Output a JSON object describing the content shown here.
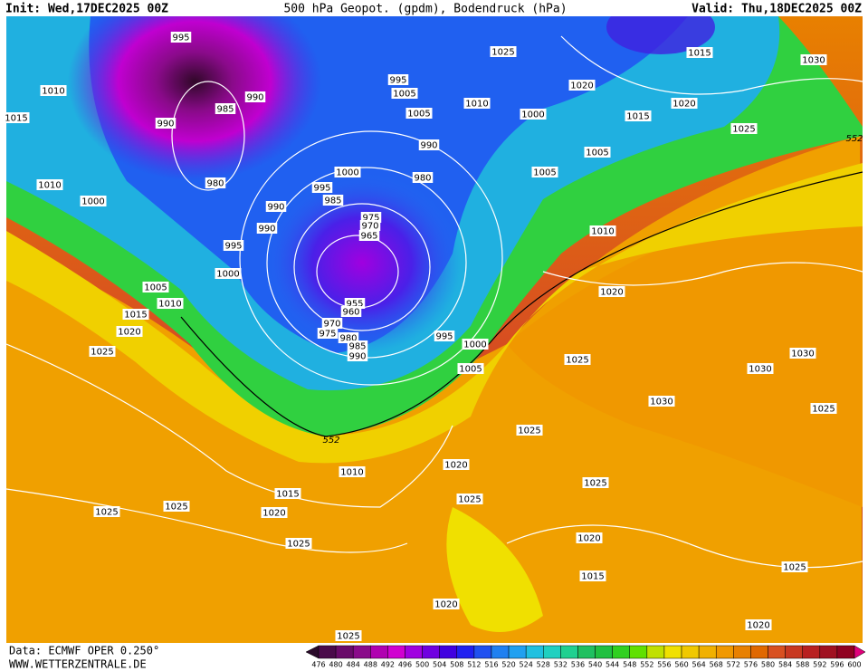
{
  "header": {
    "init": "Init: Wed,17DEC2025 00Z",
    "title": "500 hPa Geopot. (gpdm), Bodendruck (hPa)",
    "valid": "Valid: Thu,18DEC2025 00Z"
  },
  "footer": {
    "source": "Data: ECMWF OPER 0.250°",
    "website": "WWW.WETTERZENTRALE.DE"
  },
  "isobar_labels": [
    995,
    990,
    985,
    990,
    980,
    1010,
    1015,
    1010,
    1000,
    995,
    990,
    990,
    1000,
    1005,
    1010,
    1015,
    1020,
    1025,
    995,
    1005,
    1005,
    1010,
    1025,
    1020,
    1000,
    1015,
    1020,
    1015,
    1030,
    1025,
    990,
    1000,
    995,
    985,
    980,
    975,
    970,
    965,
    955,
    960,
    970,
    975,
    980,
    985,
    990,
    995,
    1000,
    1005,
    1005,
    1005,
    1010,
    1020,
    1025,
    1030,
    1030,
    1030,
    1025,
    1025,
    1020,
    1025,
    1025,
    1010,
    1015,
    1020,
    1025,
    1025,
    1025,
    1020,
    1015,
    1020,
    1025,
    1020,
    1025
  ],
  "contour_labels": [
    552,
    552
  ],
  "colorbar": {
    "labels": [
      476,
      480,
      484,
      488,
      492,
      496,
      500,
      504,
      508,
      512,
      516,
      520,
      524,
      528,
      532,
      536,
      540,
      544,
      548,
      552,
      556,
      560,
      564,
      568,
      572,
      576,
      580,
      584,
      588,
      592,
      596,
      600
    ],
    "colors": [
      "#2a0a2a",
      "#4a0a4a",
      "#6a0a6a",
      "#8a0a8a",
      "#b000b0",
      "#d000d0",
      "#a000e0",
      "#7000e0",
      "#4000e0",
      "#2020f0",
      "#2050f0",
      "#2080f0",
      "#20a0f0",
      "#20c0e0",
      "#20d0c0",
      "#20d090",
      "#20c060",
      "#20c040",
      "#30d020",
      "#60e000",
      "#c0e000",
      "#f0e000",
      "#f0c800",
      "#f0b000",
      "#f09800",
      "#e88000",
      "#e06800",
      "#d85020",
      "#c83820",
      "#b82020",
      "#a01020",
      "#900020",
      "#e0007a"
    ]
  }
}
